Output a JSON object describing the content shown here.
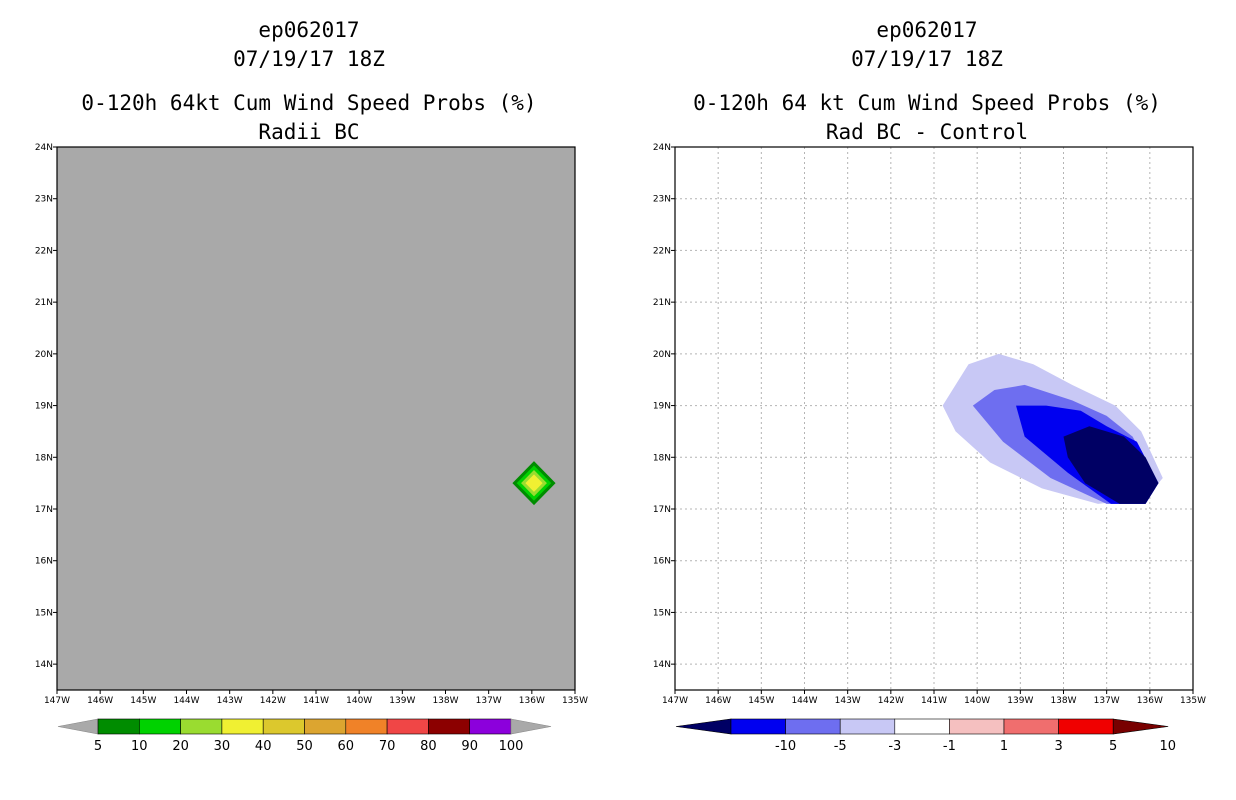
{
  "left_panel": {
    "title_lines": [
      "ep062017",
      "07/19/17 18Z",
      "0-120h 64kt Cum Wind Speed Probs (%)",
      "Radii BC"
    ],
    "background_color": "#a9a9a9",
    "colorbar": {
      "labels": [
        "5",
        "10",
        "20",
        "30",
        "40",
        "50",
        "60",
        "70",
        "80",
        "90",
        "100"
      ],
      "colors": [
        "#008c00",
        "#00d200",
        "#9adc30",
        "#f0f032",
        "#dcc82d",
        "#dca530",
        "#f08228",
        "#f04646",
        "#8c0000",
        "#8c00dc"
      ]
    }
  },
  "right_panel": {
    "title_lines": [
      "ep062017",
      "07/19/17 18Z",
      "0-120h 64 kt Cum Wind Speed Probs (%)",
      "Rad BC - Control"
    ],
    "colorbar": {
      "labels": [
        "-10",
        "-5",
        "-3",
        "-1",
        "1",
        "3",
        "5",
        "10"
      ],
      "colors": [
        "#000064",
        "#0000f0",
        "#6e6ef0",
        "#c8c8f5",
        "#ffffff",
        "#f5c0c0",
        "#f06e6e",
        "#f00000",
        "#780000"
      ]
    }
  },
  "chart_data": [
    {
      "type": "heatmap",
      "title": "0-120h 64kt Cum Wind Speed Probs (%)",
      "subtitle": "Radii BC",
      "storm": "ep062017",
      "valid": "07/19/17 18Z",
      "x_ticks": [
        "147W",
        "146W",
        "145W",
        "144W",
        "143W",
        "142W",
        "141W",
        "140W",
        "139W",
        "138W",
        "137W",
        "136W",
        "135W"
      ],
      "y_ticks": [
        "14N",
        "15N",
        "16N",
        "17N",
        "18N",
        "19N",
        "20N",
        "21N",
        "22N",
        "23N",
        "24N"
      ],
      "xlim": [
        -147,
        -135
      ],
      "ylim": [
        13.5,
        24
      ],
      "grid": false,
      "contours": [
        {
          "level": 5,
          "color": "#008c00",
          "center": [
            -135.95,
            17.5
          ],
          "half_width_deg": 0.5
        },
        {
          "level": 10,
          "color": "#00d200",
          "center": [
            -135.95,
            17.5
          ],
          "half_width_deg": 0.4
        },
        {
          "level": 20,
          "color": "#9adc30",
          "center": [
            -135.95,
            17.5
          ],
          "half_width_deg": 0.3
        },
        {
          "level": 30,
          "color": "#f0f032",
          "center": [
            -135.95,
            17.5
          ],
          "half_width_deg": 0.2
        }
      ]
    },
    {
      "type": "heatmap",
      "title": "0-120h 64 kt Cum Wind Speed Probs (%)",
      "subtitle": "Rad BC - Control",
      "storm": "ep062017",
      "valid": "07/19/17 18Z",
      "x_ticks": [
        "147W",
        "146W",
        "145W",
        "144W",
        "143W",
        "142W",
        "141W",
        "140W",
        "139W",
        "138W",
        "137W",
        "136W",
        "135W"
      ],
      "y_ticks": [
        "14N",
        "15N",
        "16N",
        "17N",
        "18N",
        "19N",
        "20N",
        "21N",
        "22N",
        "23N",
        "24N"
      ],
      "xlim": [
        -147,
        -135
      ],
      "ylim": [
        13.5,
        24
      ],
      "grid": true,
      "contours": [
        {
          "level": -1,
          "color": "#c8c8f5",
          "polygon": [
            [
              -140.8,
              19.0
            ],
            [
              -140.2,
              19.8
            ],
            [
              -139.5,
              20.0
            ],
            [
              -138.7,
              19.8
            ],
            [
              -137.8,
              19.4
            ],
            [
              -136.8,
              19.0
            ],
            [
              -136.2,
              18.5
            ],
            [
              -135.7,
              17.6
            ],
            [
              -136.1,
              17.2
            ],
            [
              -137.2,
              17.1
            ],
            [
              -138.5,
              17.4
            ],
            [
              -139.7,
              17.9
            ],
            [
              -140.5,
              18.5
            ]
          ]
        },
        {
          "level": -3,
          "color": "#6e6ef0",
          "polygon": [
            [
              -140.1,
              19.0
            ],
            [
              -139.6,
              19.3
            ],
            [
              -138.9,
              19.4
            ],
            [
              -137.8,
              19.1
            ],
            [
              -137.0,
              18.8
            ],
            [
              -136.4,
              18.4
            ],
            [
              -135.8,
              17.5
            ],
            [
              -136.1,
              17.1
            ],
            [
              -137.0,
              17.1
            ],
            [
              -138.3,
              17.6
            ],
            [
              -139.4,
              18.3
            ]
          ]
        },
        {
          "level": -5,
          "color": "#0000f0",
          "polygon": [
            [
              -139.1,
              19.0
            ],
            [
              -138.4,
              19.0
            ],
            [
              -137.6,
              18.9
            ],
            [
              -137.0,
              18.6
            ],
            [
              -136.3,
              18.3
            ],
            [
              -135.8,
              17.5
            ],
            [
              -136.1,
              17.1
            ],
            [
              -136.9,
              17.1
            ],
            [
              -137.9,
              17.7
            ],
            [
              -138.9,
              18.4
            ]
          ]
        },
        {
          "level": -10,
          "color": "#000064",
          "polygon": [
            [
              -138.0,
              18.4
            ],
            [
              -137.4,
              18.6
            ],
            [
              -136.6,
              18.4
            ],
            [
              -136.1,
              18.0
            ],
            [
              -135.8,
              17.5
            ],
            [
              -136.1,
              17.1
            ],
            [
              -136.7,
              17.1
            ],
            [
              -137.5,
              17.5
            ],
            [
              -137.9,
              18.0
            ]
          ]
        }
      ]
    }
  ]
}
